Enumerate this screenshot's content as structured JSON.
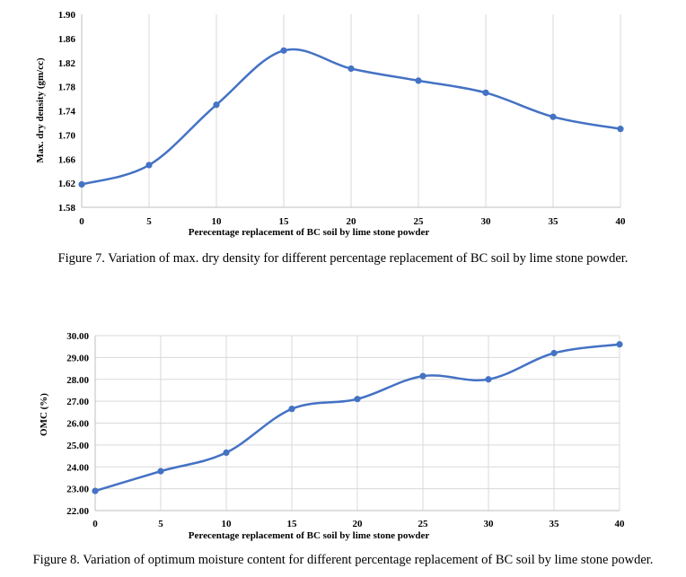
{
  "colors": {
    "series": "#4472C4",
    "grid": "#d9d9d9"
  },
  "chart_data": [
    {
      "type": "line",
      "smooth": true,
      "x": [
        0,
        5,
        10,
        15,
        20,
        25,
        30,
        35,
        40
      ],
      "series": [
        {
          "values": [
            1.618,
            1.65,
            1.75,
            1.84,
            1.81,
            1.79,
            1.77,
            1.73,
            1.71
          ]
        }
      ],
      "xlabel": "Perecentage replacement  of BC soil by lime stone powder",
      "ylabel": "Max. dry density (gm/cc)",
      "ylim": [
        1.58,
        1.9
      ],
      "yticks": [
        "1.58",
        "1.62",
        "1.66",
        "1.70",
        "1.74",
        "1.78",
        "1.82",
        "1.86",
        "1.90"
      ],
      "xticks": [
        "0",
        "5",
        "10",
        "15",
        "20",
        "25",
        "30",
        "35",
        "40"
      ],
      "grid": "vertical",
      "caption": "Figure 7. Variation of max. dry density for different percentage replacement of BC soil by lime stone powder."
    },
    {
      "type": "line",
      "smooth": true,
      "x": [
        0,
        5,
        10,
        15,
        20,
        25,
        30,
        35,
        40
      ],
      "series": [
        {
          "values": [
            22.9,
            23.8,
            24.65,
            26.65,
            27.1,
            28.15,
            28.0,
            29.2,
            29.6
          ]
        }
      ],
      "xlabel": "Perecentage replacement  of BC soil by lime stone powder",
      "ylabel": "OMC (%)",
      "ylim": [
        22.0,
        30.0
      ],
      "yticks": [
        "22.00",
        "23.00",
        "24.00",
        "25.00",
        "26.00",
        "27.00",
        "28.00",
        "29.00",
        "30.00"
      ],
      "xticks": [
        "0",
        "5",
        "10",
        "15",
        "20",
        "25",
        "30",
        "35",
        "40"
      ],
      "grid": "both",
      "caption": "Figure 8. Variation of optimum moisture content for different percentage replacement of BC soil by lime stone powder."
    }
  ]
}
